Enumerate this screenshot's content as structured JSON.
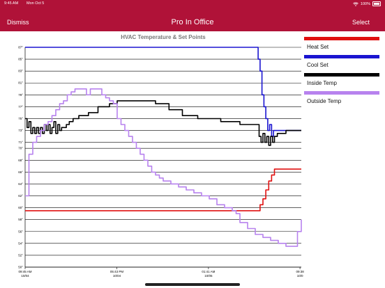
{
  "status_bar": {
    "time": "9:45 AM",
    "date": "Mon Oct 5",
    "battery": "100%",
    "wifi_icon": "wifi-icon",
    "battery_icon": "battery-icon"
  },
  "nav": {
    "dismiss_label": "Dismiss",
    "title": "Pro In Office",
    "select_label": "Select"
  },
  "colors": {
    "header_bg": "#b01238",
    "heat_set": "#e01010",
    "cool_set": "#1a14d0",
    "inside_temp": "#000000",
    "outside_temp": "#b782ee"
  },
  "legend": [
    {
      "label": "Heat Set",
      "color": "#e01010"
    },
    {
      "label": "Cool Set",
      "color": "#1a14d0"
    },
    {
      "label": "Inside Temp",
      "color": "#000000"
    },
    {
      "label": "Outside Temp",
      "color": "#b782ee"
    }
  ],
  "chart_data": {
    "type": "line",
    "title": "HVAC Temperature & Set Points",
    "ylim": [
      50,
      87
    ],
    "xlim": [
      0,
      1440
    ],
    "grid": true,
    "legend_placement": "right",
    "y_ticks": [
      "50°",
      "52°",
      "54°",
      "56°",
      "58°",
      "60°",
      "62°",
      "64°",
      "66°",
      "68°",
      "70°",
      "71°",
      "73°",
      "75°",
      "77°",
      "79°",
      "81°",
      "83°",
      "85°",
      "87°"
    ],
    "y_tick_values": [
      50,
      52,
      54,
      56,
      58,
      60,
      62,
      64,
      66,
      68,
      70,
      71,
      73,
      75,
      77,
      79,
      81,
      83,
      85,
      87
    ],
    "x_ticks": [
      {
        "x": 0,
        "time": "09:45 AM",
        "date": "10/04"
      },
      {
        "x": 478,
        "time": "05:43 PM",
        "date": "10/04"
      },
      {
        "x": 956,
        "time": "01:41 AM",
        "date": "10/05"
      },
      {
        "x": 1433,
        "time": "09:38",
        "date": "10/0"
      }
    ],
    "series": [
      {
        "name": "Heat Set",
        "color": "#e01010",
        "x": [
          0,
          1210,
          1225,
          1240,
          1255,
          1270,
          1285,
          1300,
          1440
        ],
        "y": [
          59.5,
          59.5,
          60.5,
          61.5,
          63,
          64.5,
          65.5,
          66.5,
          66.5
        ]
      },
      {
        "name": "Cool Set",
        "color": "#1a14d0",
        "x": [
          0,
          1205,
          1215,
          1225,
          1235,
          1245,
          1255,
          1265,
          1275,
          1285,
          1295,
          1440
        ],
        "y": [
          87,
          87,
          85,
          83,
          79,
          77,
          75,
          73,
          74,
          72,
          73,
          73
        ],
        "y_note": ""
      },
      {
        "name": "Inside Temp",
        "color": "#000000",
        "x": [
          0,
          10,
          20,
          30,
          40,
          50,
          60,
          70,
          80,
          90,
          100,
          110,
          120,
          130,
          140,
          150,
          160,
          170,
          180,
          190,
          200,
          215,
          230,
          250,
          280,
          330,
          380,
          440,
          480,
          520,
          600,
          680,
          750,
          820,
          900,
          960,
          1020,
          1080,
          1120,
          1180,
          1220,
          1230,
          1240,
          1250,
          1260,
          1270,
          1280,
          1290,
          1300,
          1315,
          1330,
          1360,
          1440
        ],
        "y": [
          75,
          73.5,
          74.5,
          72.5,
          73.5,
          72.5,
          73.5,
          72.5,
          73.5,
          72.5,
          74,
          73,
          74,
          72.5,
          73.5,
          74.5,
          72.5,
          74,
          73,
          73.5,
          73.5,
          74,
          74.5,
          75,
          75.5,
          76,
          77,
          77.5,
          78,
          78,
          78,
          77.5,
          76.5,
          75.5,
          75,
          75,
          74.5,
          74.5,
          74,
          74,
          72,
          71,
          72.5,
          71,
          72,
          70.5,
          72,
          71,
          72,
          72.5,
          72.5,
          73,
          73
        ]
      },
      {
        "name": "Outside Temp",
        "color": "#b782ee",
        "x": [
          0,
          20,
          40,
          60,
          80,
          100,
          120,
          140,
          160,
          180,
          200,
          220,
          240,
          260,
          280,
          300,
          320,
          340,
          360,
          380,
          400,
          420,
          440,
          460,
          480,
          500,
          520,
          540,
          560,
          580,
          600,
          620,
          640,
          660,
          680,
          700,
          720,
          760,
          800,
          840,
          880,
          920,
          960,
          1000,
          1040,
          1080,
          1100,
          1120,
          1160,
          1200,
          1240,
          1280,
          1320,
          1340,
          1360,
          1400,
          1420,
          1440
        ],
        "y": [
          62,
          69,
          71,
          72,
          73,
          74,
          74.5,
          75.5,
          76.5,
          77.5,
          78,
          79,
          79.5,
          80,
          80,
          80,
          79,
          80,
          80,
          80,
          79,
          78.5,
          78,
          77.5,
          75,
          74,
          73,
          72,
          71,
          70,
          69,
          68,
          67,
          66,
          65.5,
          65,
          64.5,
          64,
          63.5,
          63,
          62.5,
          62,
          61.5,
          60.5,
          60,
          59.5,
          59,
          57.5,
          56.5,
          55.5,
          55,
          54.5,
          54,
          54,
          53.5,
          53.5,
          56,
          58
        ]
      }
    ]
  }
}
